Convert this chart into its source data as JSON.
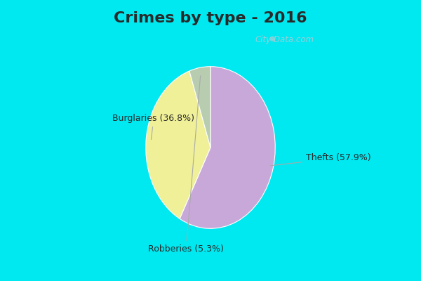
{
  "title": "Crimes by type - 2016",
  "slices": [
    {
      "label": "Thefts (57.9%)",
      "value": 57.9,
      "color": "#c8a8d8"
    },
    {
      "label": "Burglaries (36.8%)",
      "value": 36.8,
      "color": "#f0f098"
    },
    {
      "label": "Robberies (5.3%)",
      "value": 5.3,
      "color": "#b8ccb0"
    }
  ],
  "border_color": "#00e8f0",
  "bg_color": "#d0eedd",
  "title_fontsize": 16,
  "label_fontsize": 9,
  "watermark": "City-Data.com",
  "border_thickness": 8
}
